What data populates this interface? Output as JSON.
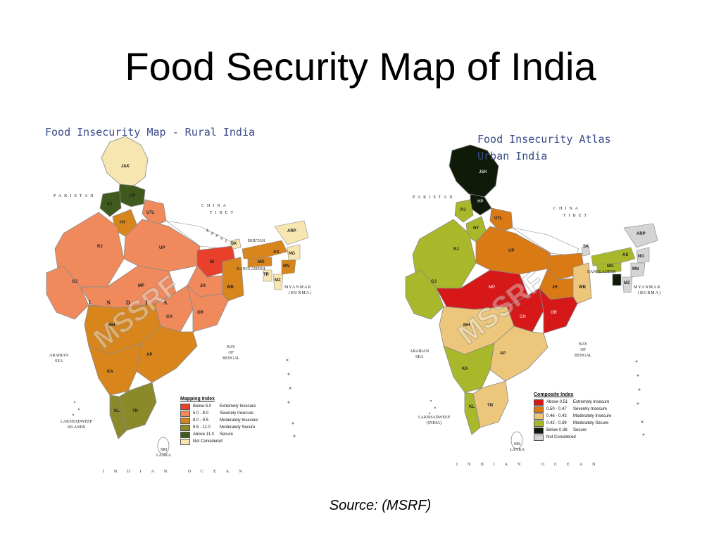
{
  "slide": {
    "title": "Food Security Map of India",
    "source": "Source: (MSRF)"
  },
  "left_map": {
    "title": "Food Insecurity Map - Rural India",
    "watermark": "MSSRF",
    "labels": {
      "pakistan": "PAKISTAN",
      "china": "CHINA",
      "tibet": "TIBET",
      "nepal": "NEPAL",
      "bhutan": "BHUTAN",
      "bangladesh": "BANGLADESH",
      "myanmar": "MYANMAR",
      "burma": "(BURMA)",
      "arabian_sea": "ARABIAN\nSEA",
      "bay_of_bengal": "BAY\nOF\nBENGAL",
      "indian_ocean": "INDIAN OCEAN",
      "lakshadweep": "LAKSHADWEEP\nISLANDS",
      "sri_lanka": "SRI\nLANKA",
      "india": "INDIA"
    },
    "states": [
      "J&K",
      "HP",
      "PJ",
      "HY",
      "UTL",
      "RJ",
      "UP",
      "BI",
      "GJ",
      "MP",
      "JH",
      "WB",
      "CH",
      "OR",
      "MH",
      "AP",
      "KA",
      "KL",
      "TN",
      "SK",
      "AS",
      "ARP",
      "NG",
      "MG",
      "MN",
      "TR",
      "MZ"
    ],
    "legend": {
      "title": "Mapping Index",
      "items": [
        {
          "range": "Below 5.0",
          "label": "Extremely Insecure",
          "color": "#e8402a"
        },
        {
          "range": "5.0 - 8.0",
          "label": "Severely Insecure",
          "color": "#f08a5d"
        },
        {
          "range": "8.0 - 9.5",
          "label": "Moderately Insecure",
          "color": "#d8861c"
        },
        {
          "range": "9.5 - 11.0",
          "label": "Moderately Secure",
          "color": "#8a8a2a"
        },
        {
          "range": "Above 11.0",
          "label": "Secure",
          "color": "#3f5a1c"
        },
        {
          "range": "",
          "label": "Not Considered",
          "color": "#f7e6b0"
        }
      ]
    }
  },
  "right_map": {
    "title": "Food Insecurity Atlas\nUrban India",
    "watermark": "MSSRF",
    "labels": {
      "pakistan": "PAKISTAN",
      "china": "CHINA",
      "tibet": "TIBET",
      "bangladesh": "BANGLADESH",
      "myanmar": "MYANMAR",
      "burma": "(BURMA)",
      "arabian_sea": "ARABIAN\nSEA",
      "bay_of_bengal": "BAY\nOF\nBENGAL",
      "indian_ocean": "INDIAN OCEAN",
      "lakshadweep": "LAKSHADWEEP\n(INDIA)",
      "sri_lanka": "SRI\nLANKA"
    },
    "states": [
      "J&K",
      "HP",
      "PJ",
      "HY",
      "UTL",
      "RJ",
      "UP",
      "SK",
      "ARP",
      "AS",
      "MG",
      "NG",
      "MN",
      "TR",
      "MZ",
      "JH",
      "WB",
      "GJ",
      "MP",
      "CH",
      "OR",
      "MH",
      "AP",
      "KA",
      "KL",
      "TN"
    ],
    "legend": {
      "title": "Composite Index",
      "items": [
        {
          "range": "Above 0.51",
          "label": "Extremely Insecure",
          "color": "#d61818"
        },
        {
          "range": "0.50 - 0.47",
          "label": "Severely Insecure",
          "color": "#d97a14"
        },
        {
          "range": "0.46 - 0.43",
          "label": "Moderately Insecure",
          "color": "#ecc67a"
        },
        {
          "range": "0.42 - 0.39",
          "label": "Moderately Secure",
          "color": "#a8b82a"
        },
        {
          "range": "Below 0.38",
          "label": "Secure",
          "color": "#0f1a08"
        },
        {
          "range": "",
          "label": "Not Considered",
          "color": "#d4d4d4"
        }
      ]
    }
  }
}
